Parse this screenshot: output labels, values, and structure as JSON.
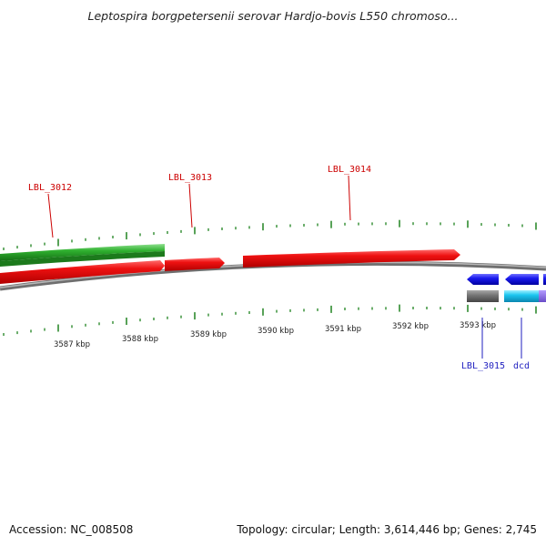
{
  "title": "Leptospira borgpetersenii serovar Hardjo-bovis L550 chromoso...",
  "footer": {
    "accession": "Accession: NC_008508",
    "summary": "Topology: circular; Length: 3,614,446 bp; Genes: 2,745"
  },
  "colors": {
    "forward_label": "#cc0000",
    "reverse_label": "#1f1fbf",
    "tick": "#2e8b2e",
    "backbone": "#8a8a8a"
  },
  "ticks": [
    {
      "id": "3587",
      "label": "3587 kbp"
    },
    {
      "id": "3588",
      "label": "3588 kbp"
    },
    {
      "id": "3589",
      "label": "3589 kbp"
    },
    {
      "id": "3590",
      "label": "3590 kbp"
    },
    {
      "id": "3591",
      "label": "3591 kbp"
    },
    {
      "id": "3592",
      "label": "3592 kbp"
    },
    {
      "id": "3593",
      "label": "3593 kbp"
    }
  ],
  "genes_forward": [
    {
      "id": "LBL_3012",
      "label": "LBL_3012"
    },
    {
      "id": "LBL_3013",
      "label": "LBL_3013"
    },
    {
      "id": "LBL_3014",
      "label": "LBL_3014"
    }
  ],
  "genes_reverse": [
    {
      "id": "LBL_3015",
      "label": "LBL_3015"
    },
    {
      "id": "dcd",
      "label": "dcd"
    }
  ]
}
